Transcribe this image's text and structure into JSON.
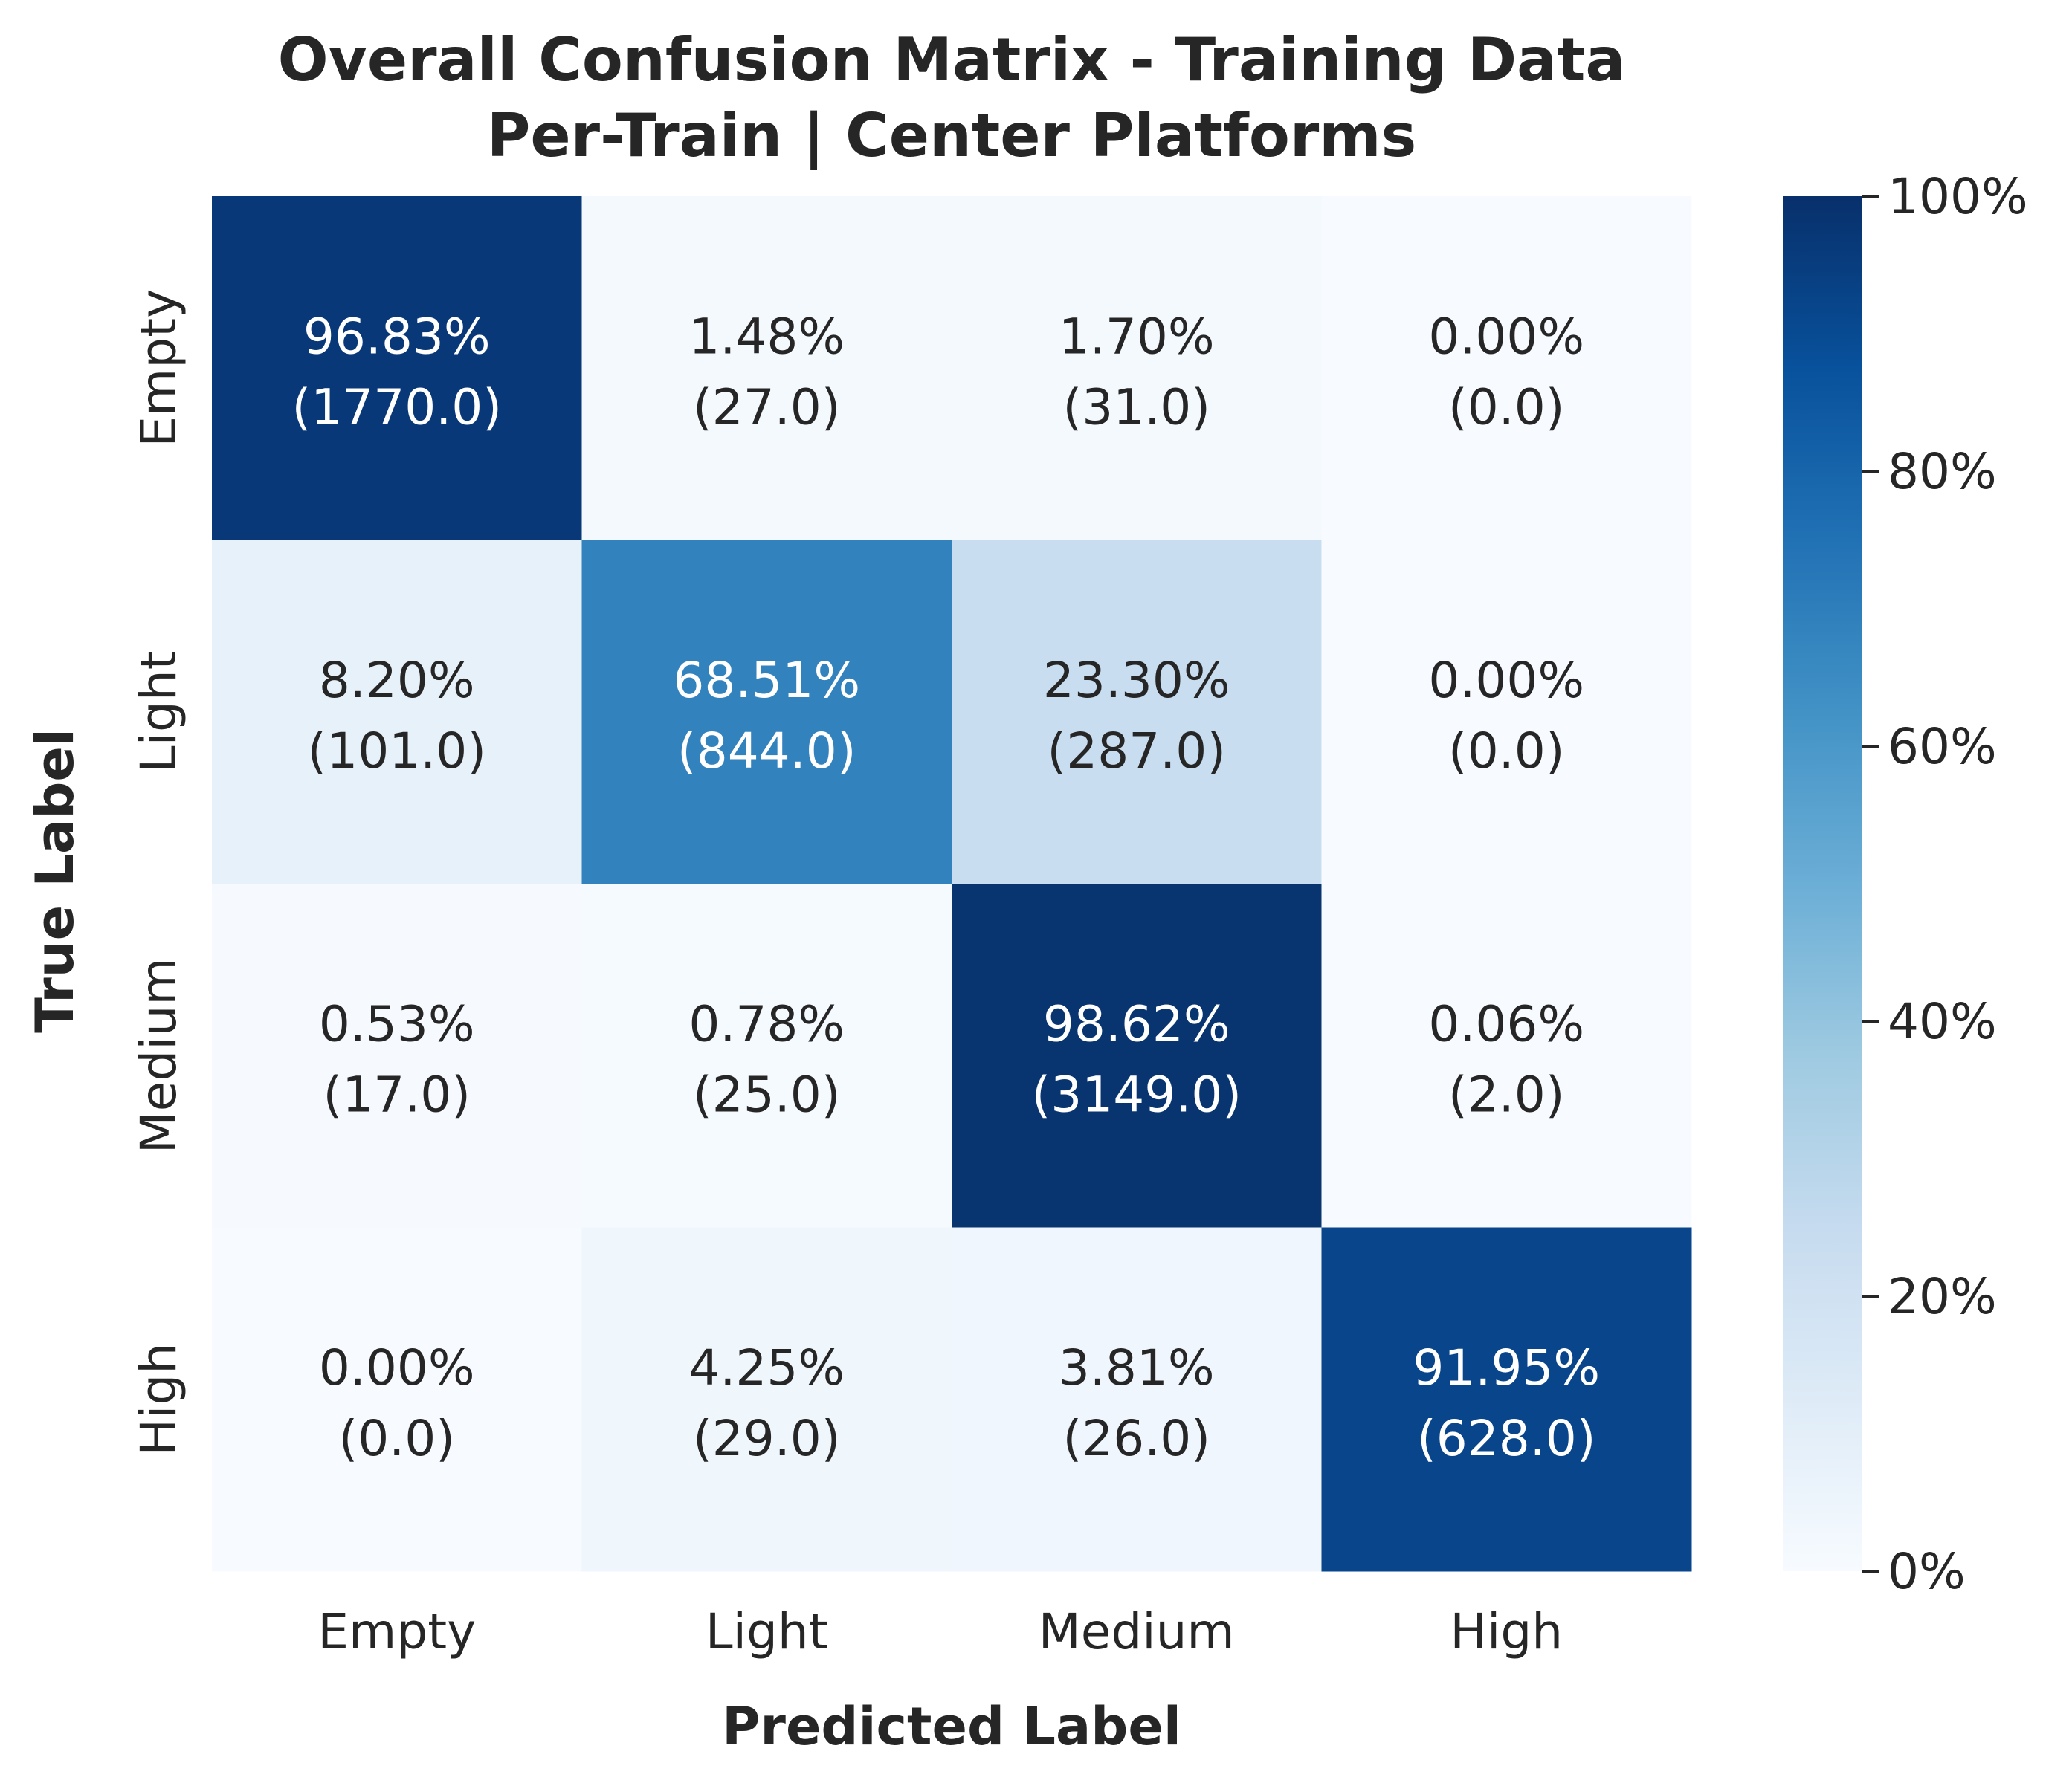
{
  "chart_data": {
    "type": "heatmap",
    "title": [
      "Overall Confusion Matrix - Training Data",
      "Per-Train | Center Platforms"
    ],
    "xlabel": "Predicted Label",
    "ylabel": "True Label",
    "x_categories": [
      "Empty",
      "Light",
      "Medium",
      "High"
    ],
    "y_categories": [
      "Empty",
      "Light",
      "Medium",
      "High"
    ],
    "cells": [
      [
        {
          "pct": "96.83%",
          "count": "(1770.0)",
          "value": 96.83
        },
        {
          "pct": "1.48%",
          "count": "(27.0)",
          "value": 1.48
        },
        {
          "pct": "1.70%",
          "count": "(31.0)",
          "value": 1.7
        },
        {
          "pct": "0.00%",
          "count": "(0.0)",
          "value": 0.0
        }
      ],
      [
        {
          "pct": "8.20%",
          "count": "(101.0)",
          "value": 8.2
        },
        {
          "pct": "68.51%",
          "count": "(844.0)",
          "value": 68.51
        },
        {
          "pct": "23.30%",
          "count": "(287.0)",
          "value": 23.3
        },
        {
          "pct": "0.00%",
          "count": "(0.0)",
          "value": 0.0
        }
      ],
      [
        {
          "pct": "0.53%",
          "count": "(17.0)",
          "value": 0.53
        },
        {
          "pct": "0.78%",
          "count": "(25.0)",
          "value": 0.78
        },
        {
          "pct": "98.62%",
          "count": "(3149.0)",
          "value": 98.62
        },
        {
          "pct": "0.06%",
          "count": "(2.0)",
          "value": 0.06
        }
      ],
      [
        {
          "pct": "0.00%",
          "count": "(0.0)",
          "value": 0.0
        },
        {
          "pct": "4.25%",
          "count": "(29.0)",
          "value": 4.25
        },
        {
          "pct": "3.81%",
          "count": "(26.0)",
          "value": 3.81
        },
        {
          "pct": "91.95%",
          "count": "(628.0)",
          "value": 91.95
        }
      ]
    ],
    "colorbar": {
      "range": [
        0,
        100
      ],
      "ticks": [
        0,
        20,
        40,
        60,
        80,
        100
      ],
      "tick_labels": [
        "0%",
        "20%",
        "40%",
        "60%",
        "80%",
        "100%"
      ],
      "colormap": "Blues"
    },
    "colors": {
      "text_dark": "#262626",
      "text_light": "#ffffff",
      "blues_stops": [
        "#f7fbff",
        "#deebf7",
        "#c6dbef",
        "#9ecae1",
        "#6baed6",
        "#4292c6",
        "#2171b5",
        "#08519c",
        "#08306b"
      ]
    }
  }
}
